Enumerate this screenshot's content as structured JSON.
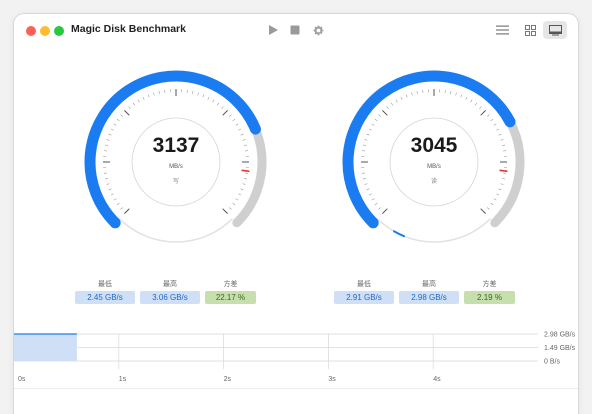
{
  "app": {
    "title": "Magic Disk Benchmark"
  },
  "toolbar": {
    "play_icon": "play-icon",
    "stop_icon": "stop-icon",
    "settings_icon": "gear-icon",
    "list_view_icon": "list-icon",
    "grid_view_icon": "grid-icon",
    "window_view_icon": "window-icon"
  },
  "colors": {
    "accent": "#1a7cf0",
    "track": "#cfcfcf",
    "min_max_bg": "#cfe0f6",
    "variance_bg": "#c7deae",
    "marker": "#e0392b"
  },
  "gauges": [
    {
      "value": "3137",
      "unit": "MB/s",
      "kind": "写",
      "fill_fraction": 0.75,
      "stats": [
        {
          "label": "最低",
          "value": "2.45 GB/s"
        },
        {
          "label": "最高",
          "value": "3.06 GB/s"
        },
        {
          "label": "方差",
          "value": "22.17 %"
        }
      ]
    },
    {
      "value": "3045",
      "unit": "MB/s",
      "kind": "读",
      "fill_fraction": 0.73,
      "stats": [
        {
          "label": "最低",
          "value": "2.91 GB/s"
        },
        {
          "label": "最高",
          "value": "2.98 GB/s"
        },
        {
          "label": "方差",
          "value": "2.19 %"
        }
      ]
    }
  ],
  "chart_data": {
    "type": "area",
    "x": [
      0,
      0.6
    ],
    "values": [
      2.98,
      2.98
    ],
    "xticks": [
      "0s",
      "1s",
      "2s",
      "3s",
      "4s"
    ],
    "yticks": [
      "2.98 GB/s",
      "1.49 GB/s",
      "0 B/s"
    ],
    "xlim": [
      0,
      5
    ],
    "ylim": [
      0,
      2.98
    ]
  }
}
